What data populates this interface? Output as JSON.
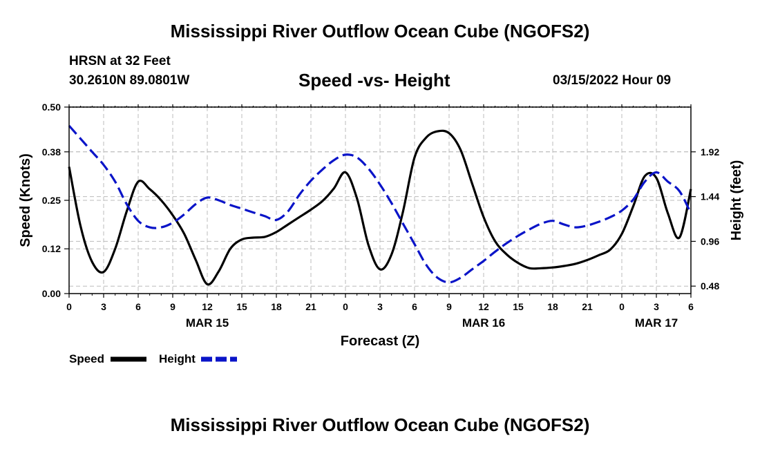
{
  "header": {
    "title": "Mississippi River Outflow Ocean Cube (NGOFS2)",
    "station": "HRSN at 32 Feet",
    "coords": "30.2610N  89.0801W",
    "subtitle": "Speed -vs- Height",
    "date": "03/15/2022 Hour 09"
  },
  "footer": {
    "title": "Mississippi River Outflow Ocean Cube (NGOFS2)"
  },
  "colors": {
    "speed": "#000000",
    "height": "#0a14c8",
    "grid": "#bbbbbb"
  },
  "chart_data": {
    "type": "line",
    "xlabel": "Forecast (Z)",
    "ylabel": "Speed (Knots)",
    "y2label": "Height (feet)",
    "xlim": [
      0,
      54
    ],
    "ylim": [
      0,
      0.5
    ],
    "y2lim": [
      0.4,
      2.4
    ],
    "xticks": [
      0,
      3,
      6,
      9,
      12,
      15,
      18,
      21,
      24,
      27,
      30,
      33,
      36,
      39,
      42,
      45,
      48,
      51,
      54
    ],
    "xtick_labels": [
      "0",
      "3",
      "6",
      "9",
      "12",
      "15",
      "18",
      "21",
      "0",
      "3",
      "6",
      "9",
      "12",
      "15",
      "18",
      "21",
      "0",
      "3",
      "6"
    ],
    "day_labels": [
      {
        "x": 12,
        "label": "MAR 15"
      },
      {
        "x": 36,
        "label": "MAR 16"
      },
      {
        "x": 51,
        "label": "MAR 17"
      }
    ],
    "yticks": [
      0.0,
      0.12,
      0.25,
      0.38,
      0.5
    ],
    "ytick_labels": [
      "0.00",
      "0.12",
      "0.25",
      "0.38",
      "0.50"
    ],
    "y2ticks": [
      0.48,
      0.96,
      1.44,
      1.92
    ],
    "y2tick_labels": [
      "0.48",
      "0.96",
      "1.44",
      "1.92"
    ],
    "series": [
      {
        "name": "Speed",
        "axis": "left",
        "style": "solid",
        "x": [
          0,
          1,
          2,
          3,
          4,
          5,
          6,
          7,
          8,
          9,
          10,
          11,
          12,
          13,
          14,
          15,
          16,
          17,
          18,
          19,
          20,
          21,
          22,
          23,
          24,
          25,
          26,
          27,
          28,
          29,
          30,
          31,
          32,
          33,
          34,
          35,
          36,
          37,
          38,
          39,
          40,
          41,
          42,
          43,
          44,
          45,
          46,
          47,
          48,
          49,
          50,
          51,
          52,
          53,
          54
        ],
        "values": [
          0.34,
          0.18,
          0.085,
          0.058,
          0.12,
          0.22,
          0.3,
          0.28,
          0.25,
          0.21,
          0.16,
          0.09,
          0.025,
          0.06,
          0.12,
          0.145,
          0.15,
          0.152,
          0.165,
          0.185,
          0.205,
          0.225,
          0.248,
          0.282,
          0.325,
          0.255,
          0.13,
          0.065,
          0.105,
          0.22,
          0.365,
          0.418,
          0.435,
          0.43,
          0.385,
          0.295,
          0.205,
          0.14,
          0.105,
          0.082,
          0.068,
          0.068,
          0.07,
          0.074,
          0.08,
          0.09,
          0.103,
          0.118,
          0.16,
          0.235,
          0.315,
          0.31,
          0.215,
          0.15,
          0.28
        ]
      },
      {
        "name": "Height",
        "axis": "right",
        "style": "dashed",
        "x": [
          0,
          1,
          2,
          3,
          4,
          5,
          6,
          7,
          8,
          9,
          10,
          11,
          12,
          13,
          14,
          15,
          16,
          17,
          18,
          19,
          20,
          21,
          22,
          23,
          24,
          25,
          26,
          27,
          28,
          29,
          30,
          31,
          32,
          33,
          34,
          35,
          36,
          37,
          38,
          39,
          40,
          41,
          42,
          43,
          44,
          45,
          46,
          47,
          48,
          49,
          50,
          51,
          52,
          53,
          54
        ],
        "values": [
          2.2,
          2.06,
          1.92,
          1.78,
          1.6,
          1.36,
          1.18,
          1.11,
          1.11,
          1.16,
          1.25,
          1.36,
          1.43,
          1.4,
          1.35,
          1.31,
          1.27,
          1.23,
          1.19,
          1.28,
          1.46,
          1.61,
          1.73,
          1.83,
          1.89,
          1.86,
          1.74,
          1.57,
          1.37,
          1.15,
          0.93,
          0.71,
          0.57,
          0.52,
          0.57,
          0.66,
          0.75,
          0.85,
          0.94,
          1.02,
          1.09,
          1.15,
          1.18,
          1.14,
          1.11,
          1.13,
          1.17,
          1.22,
          1.29,
          1.41,
          1.6,
          1.7,
          1.6,
          1.5,
          1.26
        ]
      }
    ],
    "legend": [
      {
        "label": "Speed",
        "style": "solid"
      },
      {
        "label": "Height",
        "style": "dashed"
      }
    ]
  }
}
